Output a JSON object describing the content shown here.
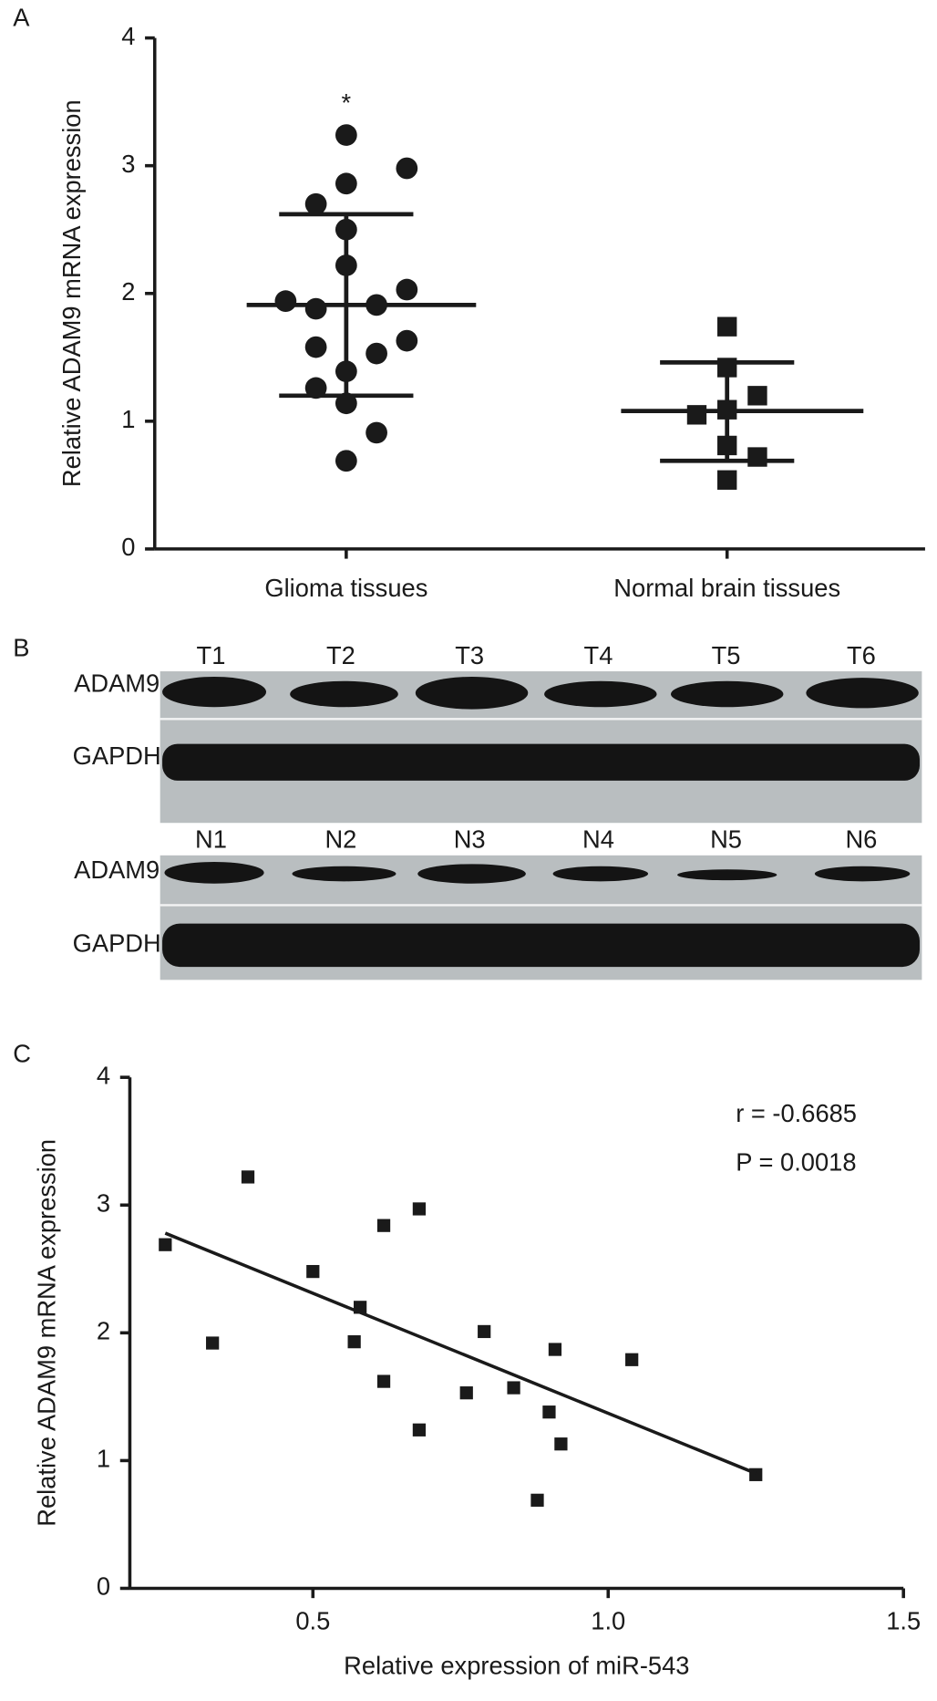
{
  "panel_labels": [
    "A",
    "B",
    "C"
  ],
  "blot": {
    "top_lanes": [
      "T1",
      "T2",
      "T3",
      "T4",
      "T5",
      "T6"
    ],
    "bottom_lanes": [
      "N1",
      "N2",
      "N3",
      "N4",
      "N5",
      "N6"
    ],
    "rows": [
      "ADAM9",
      "GAPDH"
    ]
  },
  "chart_data": [
    {
      "type": "dot",
      "y_label": "Relative ADAM9 mRNA expression",
      "annotation": "*",
      "categories": [
        "Glioma tissues",
        "Normal brain tissues"
      ],
      "ylim": [
        0,
        4
      ],
      "yticks": [
        0,
        1,
        2,
        3,
        4
      ],
      "color": "#1a1a1a",
      "groups": [
        {
          "marker": "circle",
          "values": [
            3.24,
            2.98,
            2.86,
            2.7,
            2.5,
            2.22,
            2.03,
            1.94,
            1.88,
            1.91,
            1.63,
            1.58,
            1.53,
            1.39,
            1.26,
            1.14,
            0.91,
            0.69
          ],
          "mean": 1.91,
          "sd_upper": 2.62,
          "sd_lower": 1.2
        },
        {
          "marker": "square",
          "values": [
            1.74,
            1.42,
            1.2,
            1.09,
            1.05,
            0.81,
            0.72,
            0.54
          ],
          "mean": 1.08,
          "sd_upper": 1.46,
          "sd_lower": 0.69
        }
      ]
    },
    {
      "type": "scatter",
      "x_label": "Relative expression of miR-543",
      "y_label": "Relative ADAM9 mRNA expression",
      "annotations": [
        "r = -0.6685",
        "P = 0.0018"
      ],
      "color": "#1a1a1a",
      "x": [
        0.25,
        0.39,
        0.33,
        0.5,
        0.58,
        0.57,
        0.62,
        0.68,
        0.62,
        0.68,
        0.79,
        0.76,
        0.84,
        0.91,
        0.9,
        0.92,
        0.88,
        1.04,
        1.25
      ],
      "values": [
        2.69,
        3.22,
        1.92,
        2.48,
        2.2,
        1.93,
        2.84,
        2.97,
        1.62,
        1.24,
        2.01,
        1.53,
        1.57,
        1.87,
        1.38,
        1.13,
        0.69,
        1.79,
        0.89
      ],
      "xlim": [
        0.19,
        1.5
      ],
      "xticks": [
        0.5,
        {
          "value": 1,
          "label": "1.0"
        },
        1.5
      ],
      "ylim": [
        0,
        4
      ],
      "yticks": [
        0,
        1,
        2,
        3,
        4
      ],
      "fit": {
        "x": [
          0.25,
          1.25
        ],
        "values": [
          2.78,
          0.9
        ]
      }
    }
  ]
}
